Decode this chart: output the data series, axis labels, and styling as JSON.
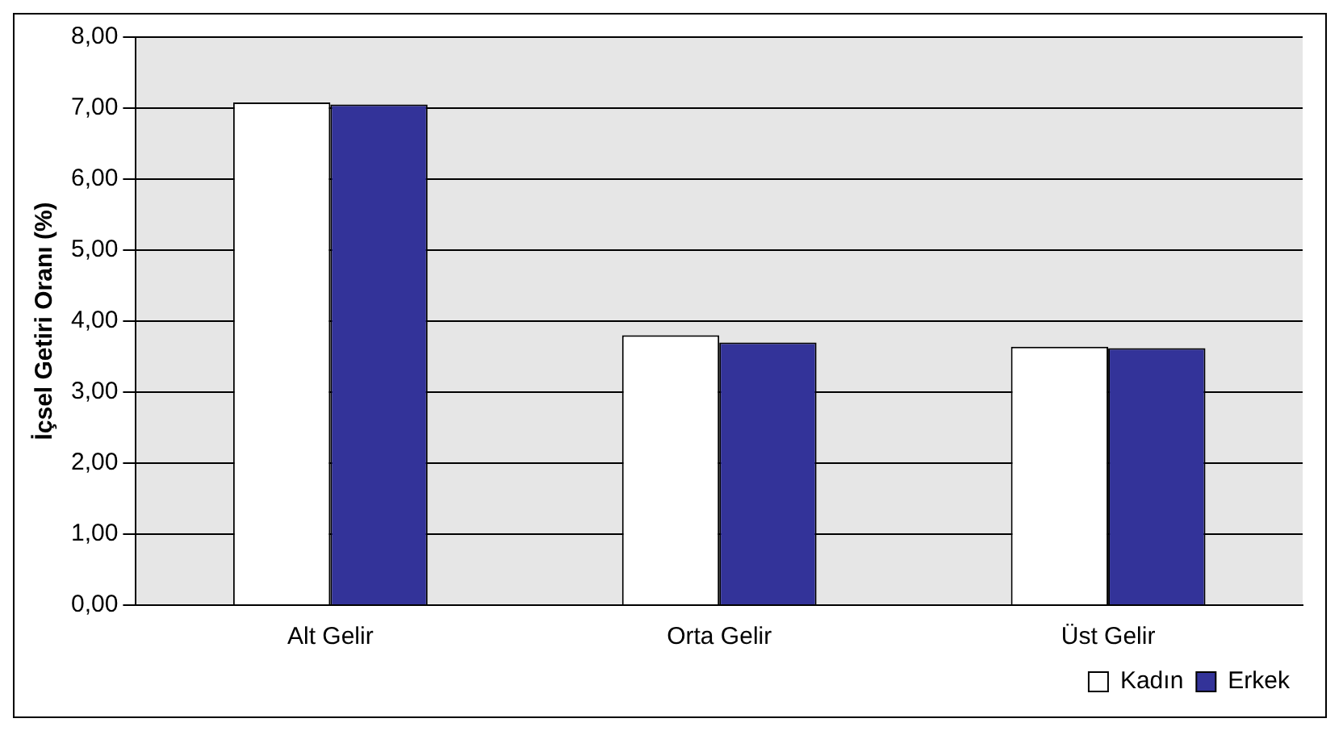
{
  "chart_data": {
    "type": "bar",
    "ylabel": "İçsel Getiri Oranı (%)",
    "categories": [
      "Alt Gelir",
      "Orta Gelir",
      "Üst Gelir"
    ],
    "series": [
      {
        "name": "Kadın",
        "color": "#ffffff",
        "values": [
          7.08,
          3.8,
          3.64
        ]
      },
      {
        "name": "Erkek",
        "color": "#333399",
        "values": [
          7.05,
          3.7,
          3.62
        ]
      }
    ],
    "ylim": [
      0,
      8
    ],
    "yticks": [
      {
        "value": 0,
        "label": "0,00"
      },
      {
        "value": 1,
        "label": "1,00"
      },
      {
        "value": 2,
        "label": "2,00"
      },
      {
        "value": 3,
        "label": "3,00"
      },
      {
        "value": 4,
        "label": "4,00"
      },
      {
        "value": 5,
        "label": "5,00"
      },
      {
        "value": 6,
        "label": "6,00"
      },
      {
        "value": 7,
        "label": "7,00"
      },
      {
        "value": 8,
        "label": "8,00"
      }
    ],
    "grid": "y",
    "legend": "bottom right"
  }
}
